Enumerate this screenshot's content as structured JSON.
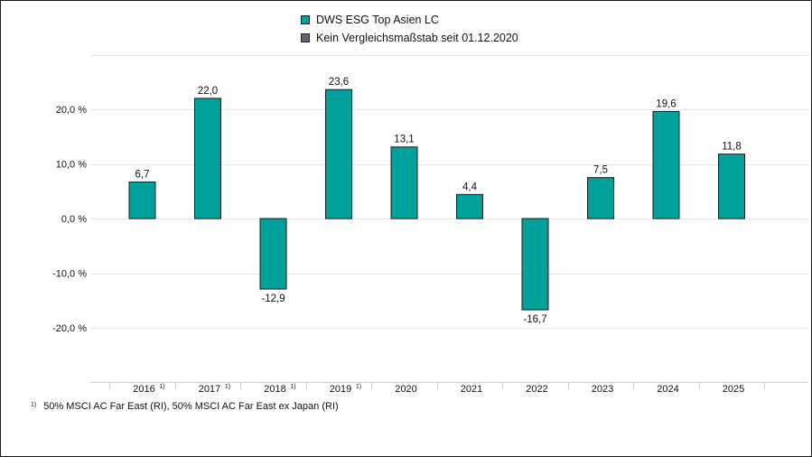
{
  "colors": {
    "bar": "#00a19a",
    "bar_border": "#1b1b1b",
    "comparison": "#5c6670",
    "grid": "#e3e3e3",
    "text": "#111111"
  },
  "legend": [
    {
      "label": "DWS ESG Top Asien LC",
      "color": "#00a19a"
    },
    {
      "label": "Kein Vergleichsmaßstab seit 01.12.2020",
      "color": "#5c6670"
    }
  ],
  "footnote": {
    "mark": "1)",
    "text": "50% MSCI AC Far East (RI), 50% MSCI AC Far East ex Japan (RI)"
  },
  "chart_data": {
    "type": "bar",
    "categories": [
      "2016",
      "2017",
      "2018",
      "2019",
      "2020",
      "2021",
      "2022",
      "2023",
      "2024",
      "2025"
    ],
    "category_marks": [
      "1)",
      "1)",
      "1)",
      "1)",
      "",
      "",
      "",
      "",
      "",
      ""
    ],
    "series": [
      {
        "name": "DWS ESG Top Asien LC",
        "values": [
          6.7,
          22.0,
          -12.9,
          23.6,
          13.1,
          4.4,
          -16.7,
          7.5,
          19.6,
          11.8
        ],
        "labels": [
          "6,7",
          "22,0",
          "-12,9",
          "23,6",
          "13,1",
          "4,4",
          "-16,7",
          "7,5",
          "19,6",
          "11,8"
        ]
      }
    ],
    "y_ticks": [
      20,
      10,
      0,
      -10,
      -20
    ],
    "y_tick_labels": [
      "20,0 %",
      "10,0 %",
      "0,0 %",
      "-10,0 %",
      "-20,0 %"
    ],
    "ylim": [
      -29,
      30
    ],
    "grid": true,
    "legend_position": "top-center"
  }
}
